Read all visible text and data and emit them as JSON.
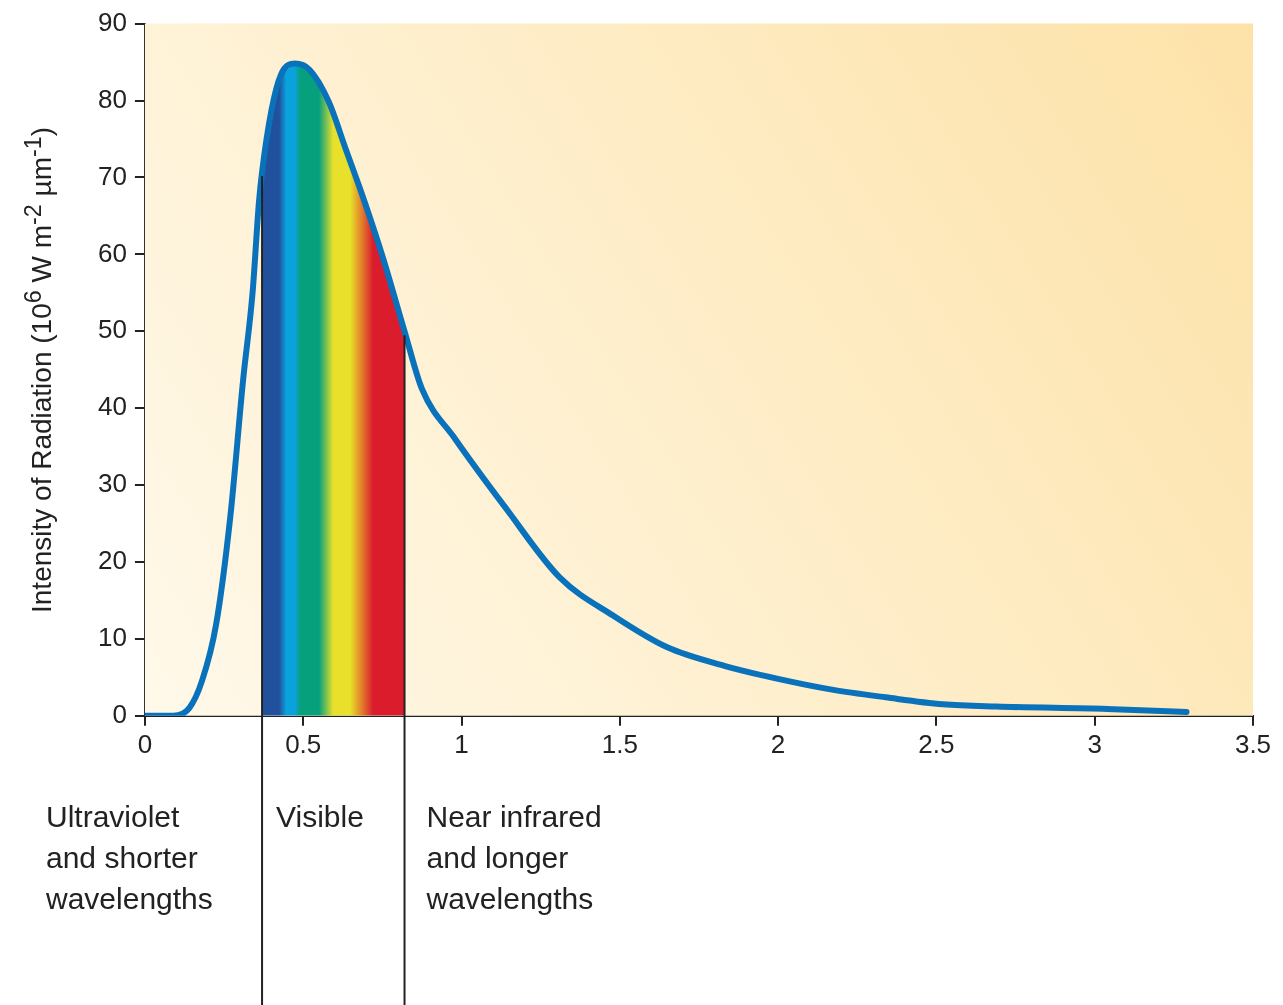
{
  "chart_data": {
    "type": "line",
    "ylabel": "Intensity of Radiation (10$^{6}$ W m$^{-2}$ µm$^{-1}$)",
    "x": [
      0,
      0.09,
      0.14,
      0.18,
      0.225,
      0.27,
      0.31,
      0.34,
      0.36,
      0.37,
      0.4,
      0.43,
      0.474,
      0.52,
      0.58,
      0.635,
      0.69,
      0.75,
      0.82,
      0.875,
      0.98,
      1.14,
      1.31,
      1.48,
      1.65,
      1.83,
      2.0,
      2.17,
      2.34,
      2.52,
      2.69,
      3.04,
      3.29
    ],
    "series": [
      {
        "color": "#0a72ba",
        "values": [
          0,
          0,
          1,
          4.5,
          11.9,
          26,
          43.6,
          55,
          66.7,
          70.7,
          78.8,
          83.4,
          84.8,
          84,
          79.9,
          73.6,
          67.3,
          59.8,
          50,
          42.5,
          36,
          27,
          18,
          13,
          8.9,
          6.5,
          4.8,
          3.4,
          2.4,
          1.5,
          1.2,
          0.9,
          0.5
        ]
      }
    ],
    "xlim": [
      0,
      3.5
    ],
    "xticks": [
      0,
      0.5,
      1,
      1.5,
      2,
      2.5,
      3,
      3.5
    ],
    "ylim": [
      0,
      90
    ],
    "yticks": [
      0,
      10,
      20,
      30,
      40,
      50,
      60,
      70,
      80,
      90
    ],
    "ref_lines": [
      {
        "axis": "x",
        "value": 0.37
      },
      {
        "axis": "x",
        "value": 0.82
      }
    ],
    "bands": [
      {
        "axis": "x",
        "from": 0.37,
        "to": 0.82,
        "label": "Visible"
      }
    ],
    "annotations": [
      "Ultraviolet\nand shorter\nwavelengths",
      "Near infrared\nand longer\nwavelengths"
    ],
    "grid": false,
    "legend": false,
    "marker": "none",
    "line_style": "solid"
  }
}
